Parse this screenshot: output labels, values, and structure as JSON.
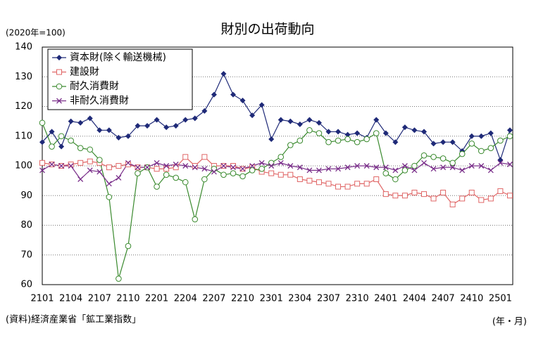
{
  "chart_data": {
    "type": "line",
    "title": "財別の出荷動向",
    "ylabel": "(2020年=100)",
    "source": "(資料)経済産業省「鉱工業指数」",
    "xlabel": "(年・月)",
    "categories": [
      "2101",
      null,
      null,
      "2104",
      null,
      null,
      "2107",
      null,
      null,
      "2110",
      null,
      null,
      "2201",
      null,
      null,
      "2204",
      null,
      null,
      "2207",
      null,
      null,
      "2210",
      null,
      null,
      "2301",
      null,
      null,
      "2304",
      null,
      null,
      "2307",
      null,
      null,
      "2310",
      null,
      null,
      "2401",
      null,
      null,
      "2404",
      null,
      null,
      "2407",
      null,
      null,
      "2410",
      null,
      null,
      "2501",
      null
    ],
    "ylim": [
      60,
      140
    ],
    "yticks": [
      60,
      70,
      80,
      90,
      100,
      110,
      120,
      130,
      140
    ],
    "grid": true,
    "legend": "upper left",
    "series": [
      {
        "name": "資本財(除く輸送機械)",
        "color": "#1f2a78",
        "marker": "diamond",
        "values": [
          108,
          111.5,
          106.5,
          115,
          114.5,
          116,
          112,
          112,
          109.5,
          110,
          113.5,
          113.5,
          115.5,
          113,
          113.5,
          115.5,
          116,
          118.5,
          124,
          131,
          124,
          122,
          117,
          120.5,
          109,
          115.5,
          115,
          114,
          115.5,
          114.5,
          111.5,
          111.5,
          110.5,
          111,
          109.5,
          115.5,
          111,
          108,
          113,
          112,
          111.5,
          107.5,
          108,
          108,
          105,
          110,
          110,
          111,
          102,
          112
        ]
      },
      {
        "name": "建設財",
        "color": "#e06666",
        "marker": "square",
        "values": [
          101,
          100.5,
          100,
          100.5,
          101,
          101.5,
          101,
          99.5,
          100,
          100.5,
          99.5,
          99.5,
          99,
          99,
          99.5,
          103,
          100,
          103,
          100,
          100,
          100,
          99,
          99.5,
          98,
          97.5,
          97,
          97,
          95.5,
          95,
          94.5,
          94,
          93,
          93,
          94,
          94,
          95.5,
          90.5,
          90,
          90,
          91,
          90.5,
          89,
          91,
          87,
          89,
          91,
          88.5,
          89,
          91.5,
          90
        ]
      },
      {
        "name": "耐久消費財",
        "color": "#3a8a2e",
        "marker": "circle",
        "values": [
          114.5,
          106.5,
          110,
          108.5,
          106,
          105.5,
          102,
          89.5,
          62,
          73,
          97.5,
          99.5,
          93,
          97,
          96,
          94.5,
          82,
          95.5,
          99,
          97,
          97.5,
          96.5,
          98.5,
          99,
          101,
          103,
          107,
          108.5,
          112,
          111,
          108,
          108.5,
          109,
          108,
          109,
          111,
          97.5,
          95.5,
          98.5,
          100,
          103.5,
          103,
          102.5,
          101,
          104,
          107.5,
          105,
          106,
          108.5,
          110
        ]
      },
      {
        "name": "非耐久消費財",
        "color": "#7a2f8a",
        "marker": "x",
        "values": [
          98.5,
          100.5,
          100,
          100,
          95.5,
          98.5,
          98,
          94,
          96,
          101,
          99.5,
          99.5,
          101,
          100,
          100.5,
          100,
          99.5,
          99,
          98,
          100,
          99.5,
          99,
          100,
          101,
          100,
          101,
          100,
          99.5,
          98.5,
          98.5,
          99,
          99,
          99.5,
          100,
          100,
          99.5,
          99.5,
          98.5,
          100,
          98.5,
          101,
          99,
          99.5,
          99.5,
          98.5,
          100,
          100,
          98.5,
          101,
          100.5
        ]
      }
    ]
  }
}
